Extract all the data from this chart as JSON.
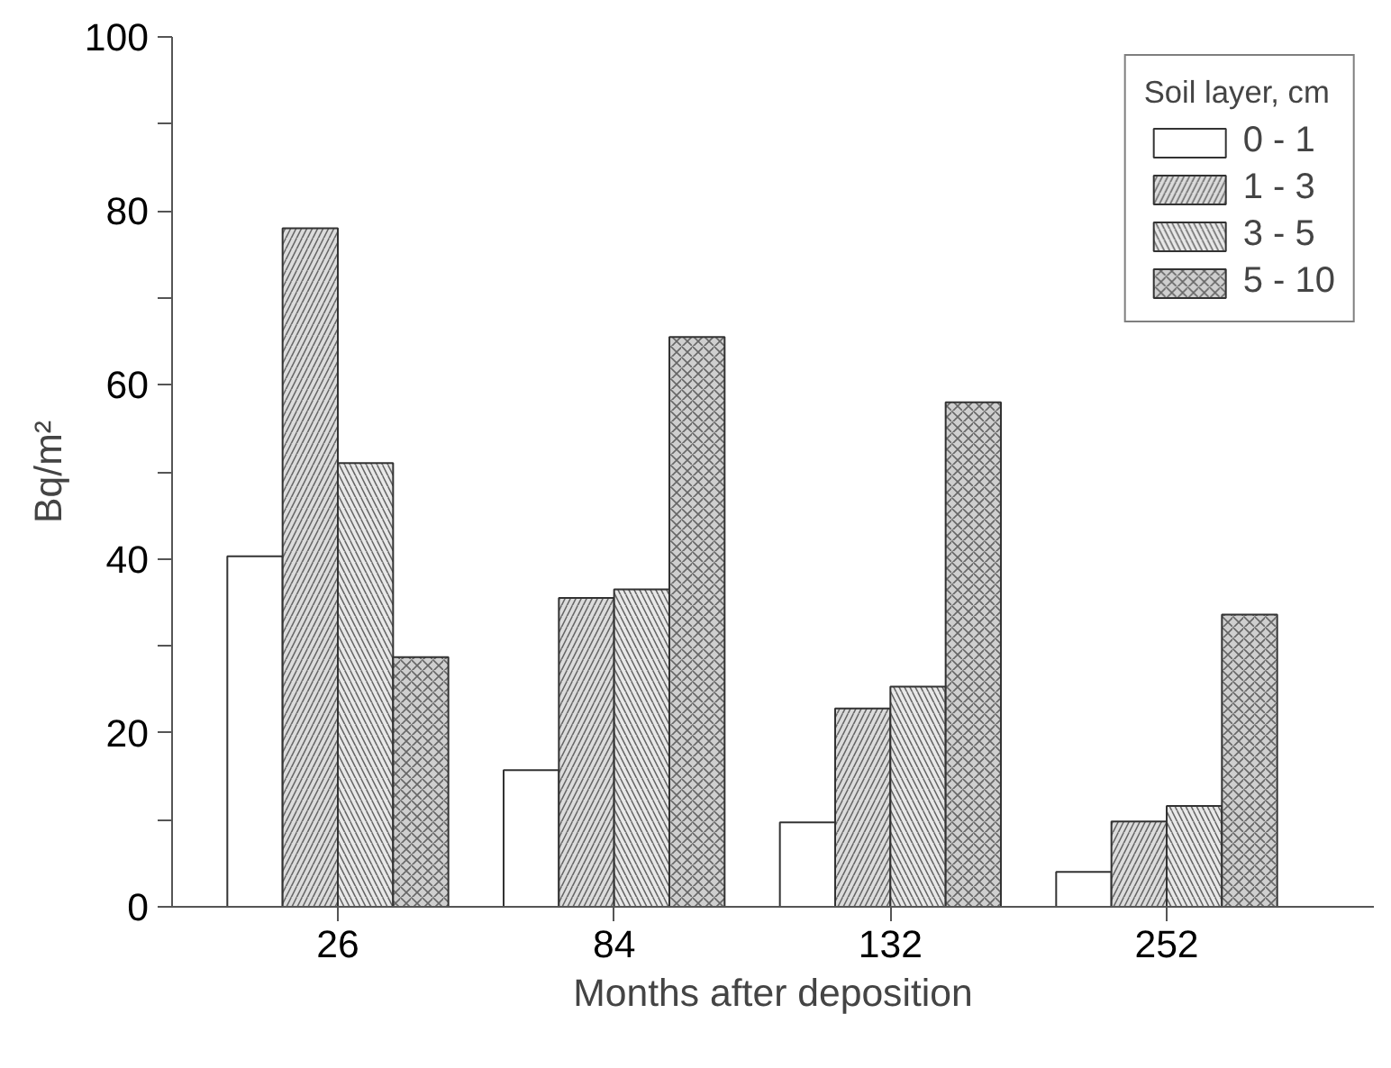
{
  "chart_data": {
    "type": "bar",
    "xlabel": "Months after deposition",
    "ylabel": "Bq/m²",
    "legend_title": "Soil layer, cm",
    "categories": [
      "26",
      "84",
      "132",
      "252"
    ],
    "series": [
      {
        "name": "0 - 1",
        "color": "#ffffff",
        "values": [
          40.3,
          15.7,
          9.7,
          4.0
        ]
      },
      {
        "name": "1 - 3",
        "color": "#dcdcdc",
        "values": [
          78,
          35.5,
          22.8,
          9.8
        ]
      },
      {
        "name": "3 - 5",
        "color": "#e8e8e8",
        "values": [
          51,
          36.5,
          25.3,
          11.6
        ]
      },
      {
        "name": "5 - 10",
        "color": "#cfcfcf",
        "values": [
          28.7,
          65.5,
          58,
          33.6
        ]
      }
    ],
    "ylim": [
      0,
      100
    ],
    "yticks": [
      0,
      {
        "value": 10,
        "label": null
      },
      20,
      {
        "value": 30,
        "label": null
      },
      40,
      {
        "value": 50,
        "label": null
      },
      60,
      {
        "value": 70,
        "label": null
      },
      80,
      {
        "value": 90,
        "label": null
      },
      100
    ],
    "grid": false,
    "legend": "top right"
  }
}
